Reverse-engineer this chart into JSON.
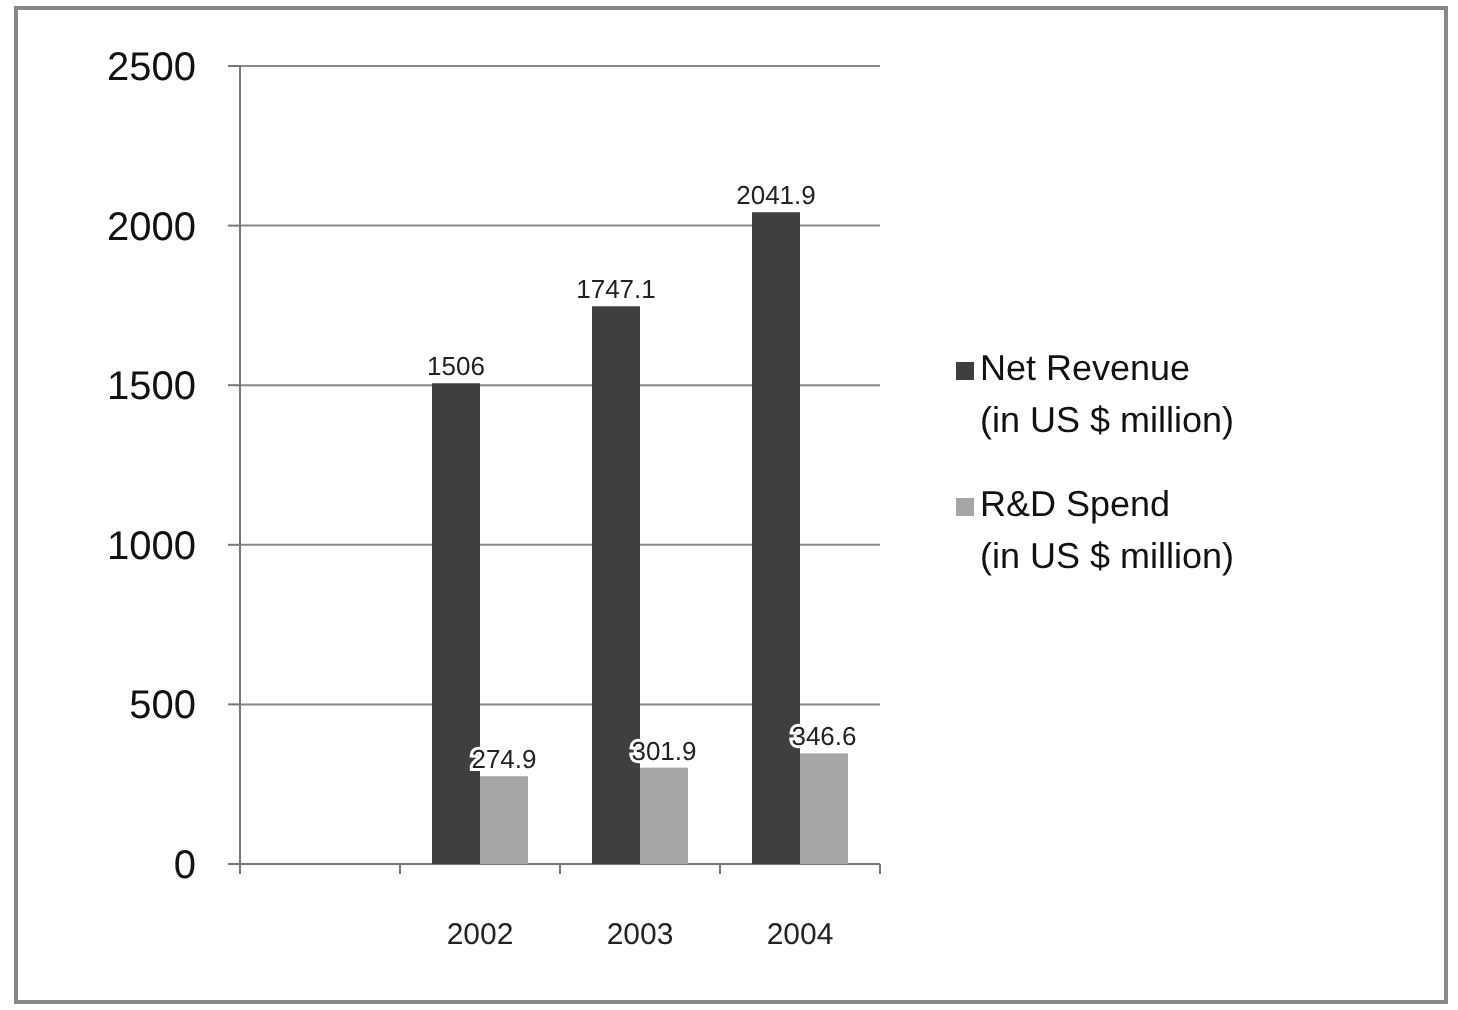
{
  "chart_data": {
    "type": "bar",
    "categories": [
      null,
      "2002",
      "2003",
      "2004"
    ],
    "series": [
      {
        "name": "Net Revenue\n(in US $ million)",
        "color": "#3f3f3f",
        "values": [
          null,
          1506,
          1747.1,
          2041.9
        ]
      },
      {
        "name": "R&D Spend\n(in US $ million)",
        "color": "#a6a6a6",
        "values": [
          null,
          274.9,
          301.9,
          346.6
        ]
      }
    ],
    "ylim": [
      0,
      2500
    ],
    "yticks": [
      0,
      500,
      1000,
      1500,
      2000,
      2500
    ],
    "grid": "y",
    "legend": "right",
    "data_labels": true
  }
}
